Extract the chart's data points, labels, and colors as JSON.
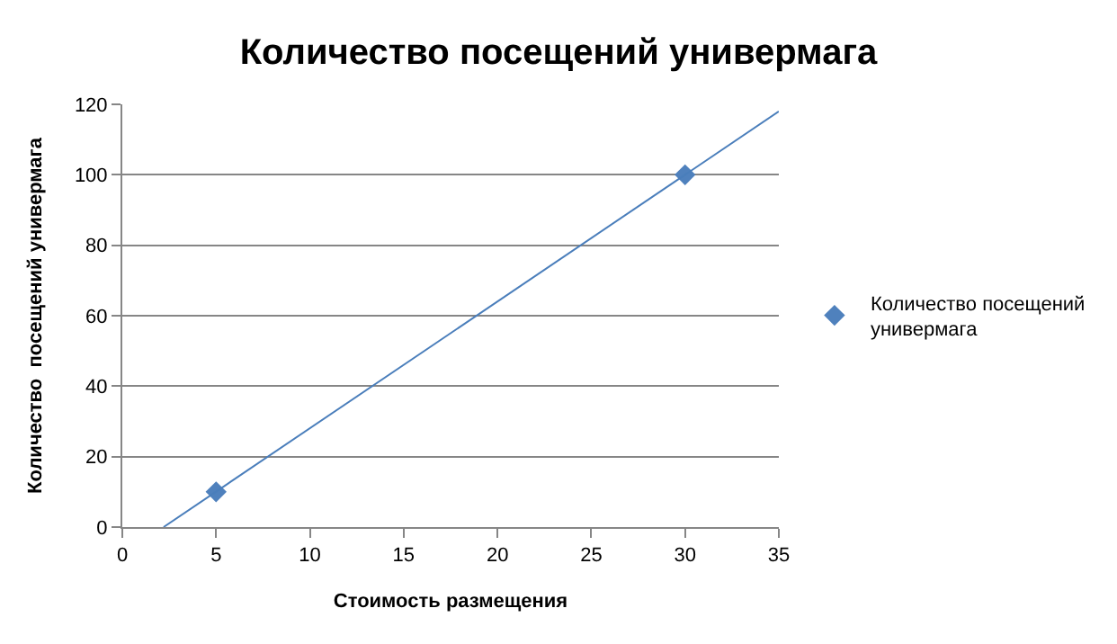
{
  "chart_data": {
    "type": "scatter",
    "title": "Количество посещений универмага",
    "xlabel": "Стоимость размещения",
    "ylabel": "Количество  посещений универмага",
    "series": [
      {
        "name": "Количество посещений универмага",
        "color": "#4f81bd",
        "x": [
          5,
          30
        ],
        "values": [
          10,
          100
        ],
        "marker": "diamond"
      },
      {
        "type": "line",
        "color": "#4a7ebb",
        "x": [
          2.2,
          35
        ],
        "values": [
          0,
          118
        ],
        "marker": "none"
      }
    ],
    "xlim": [
      0,
      35
    ],
    "xticks": [
      0,
      5,
      10,
      15,
      20,
      25,
      30,
      35
    ],
    "ylim": [
      0,
      120
    ],
    "yticks": [
      0,
      20,
      40,
      60,
      80,
      100,
      120
    ],
    "grid": "y",
    "legend": "right"
  }
}
